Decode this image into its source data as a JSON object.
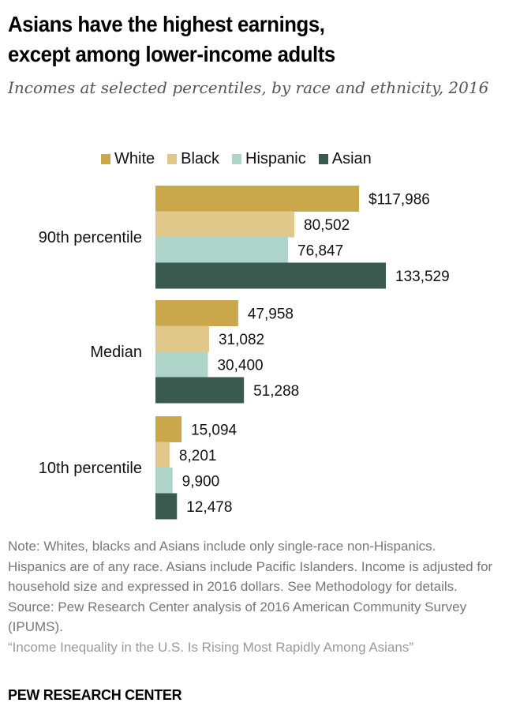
{
  "header": {
    "title_line1": "Asians have the highest earnings,",
    "title_line2": "except among lower-income adults",
    "subtitle": "Incomes at selected percentiles, by race and ethnicity, 2016"
  },
  "chart_data": {
    "type": "bar",
    "orientation": "horizontal",
    "title": "Asians have the highest earnings, except among lower-income adults",
    "subtitle": "Incomes at selected percentiles, by race and ethnicity, 2016",
    "categories": [
      "90th percentile",
      "Median",
      "10th percentile"
    ],
    "series": [
      {
        "name": "White",
        "color": "#c9a74a",
        "values": [
          117986,
          47958,
          15094
        ],
        "labels": [
          "$117,986",
          "47,958",
          "15,094"
        ]
      },
      {
        "name": "Black",
        "color": "#dfc88a",
        "values": [
          80502,
          31082,
          8201
        ],
        "labels": [
          "80,502",
          "31,082",
          "8,201"
        ]
      },
      {
        "name": "Hispanic",
        "color": "#aed3c9",
        "values": [
          76847,
          30400,
          9900
        ],
        "labels": [
          "76,847",
          "30,400",
          "9,900"
        ]
      },
      {
        "name": "Asian",
        "color": "#3a5a50",
        "values": [
          133529,
          51288,
          12478
        ],
        "labels": [
          "133,529",
          "51,288",
          "12,478"
        ]
      }
    ],
    "xlim": [
      0,
      133529
    ],
    "legend_position": "top",
    "grid": false
  },
  "notes": {
    "note": "Note: Whites, blacks and Asians include only single-race non-Hispanics. Hispanics are of any race. Asians include Pacific Islanders. Income is adjusted for household size and expressed in 2016 dollars. See Methodology for details.",
    "source": "Source: Pew Research Center analysis of 2016 American Community Survey (IPUMS).",
    "report": "“Income Inequality in the U.S. Is Rising Most Rapidly Among Asians”"
  },
  "footer": {
    "brand": "PEW RESEARCH CENTER"
  }
}
